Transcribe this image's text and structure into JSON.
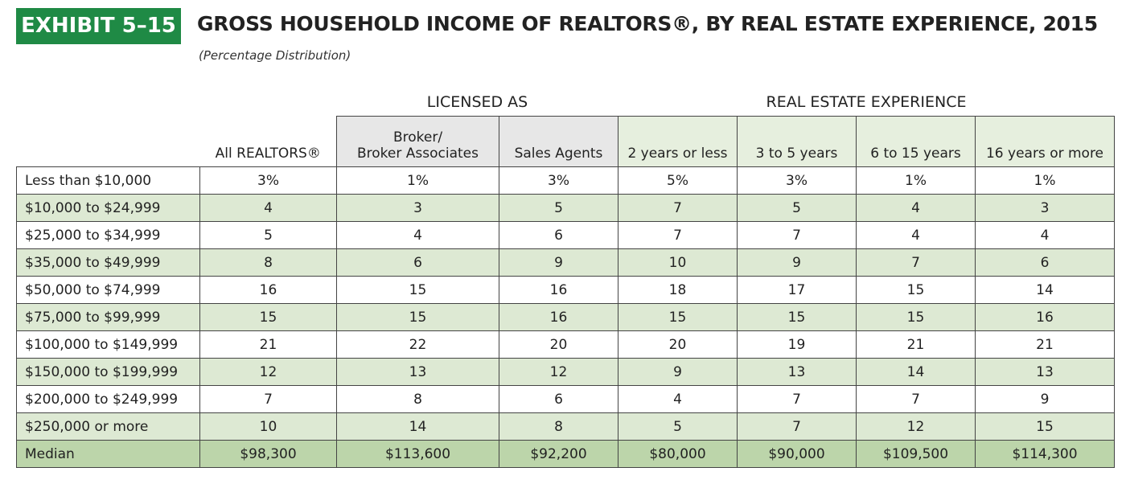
{
  "header": {
    "exhibit": "EXHIBIT 5–15",
    "title": "GROSS HOUSEHOLD INCOME OF REALTORS®, BY REAL ESTATE EXPERIENCE, 2015",
    "subtitle": "(Percentage Distribution)"
  },
  "table": {
    "group_headers": [
      "LICENSED AS",
      "REAL ESTATE EXPERIENCE"
    ],
    "columns": [
      "All REALTORS®",
      "Broker/\nBroker Associates",
      "Sales Agents",
      "2 years or less",
      "3 to 5 years",
      "6 to 15 years",
      "16 years or more"
    ],
    "rows": [
      [
        "Less than $10,000",
        "3%",
        "1%",
        "3%",
        "5%",
        "3%",
        "1%",
        "1%"
      ],
      [
        "$10,000 to $24,999",
        "4",
        "3",
        "5",
        "7",
        "5",
        "4",
        "3"
      ],
      [
        "$25,000 to $34,999",
        "5",
        "4",
        "6",
        "7",
        "7",
        "4",
        "4"
      ],
      [
        "$35,000 to $49,999",
        "8",
        "6",
        "9",
        "10",
        "9",
        "7",
        "6"
      ],
      [
        "$50,000 to $74,999",
        "16",
        "15",
        "16",
        "18",
        "17",
        "15",
        "14"
      ],
      [
        "$75,000 to $99,999",
        "15",
        "15",
        "16",
        "15",
        "15",
        "15",
        "16"
      ],
      [
        "$100,000 to $149,999",
        "21",
        "22",
        "20",
        "20",
        "19",
        "21",
        "21"
      ],
      [
        "$150,000 to $199,999",
        "12",
        "13",
        "12",
        "9",
        "13",
        "14",
        "13"
      ],
      [
        "$200,000 to $249,999",
        "7",
        "8",
        "6",
        "4",
        "7",
        "7",
        "9"
      ],
      [
        "$250,000 or more",
        "10",
        "14",
        "8",
        "5",
        "7",
        "12",
        "15"
      ],
      [
        "Median",
        "$98,300",
        "$113,600",
        "$92,200",
        "$80,000",
        "$90,000",
        "$109,500",
        "$114,300"
      ]
    ]
  }
}
